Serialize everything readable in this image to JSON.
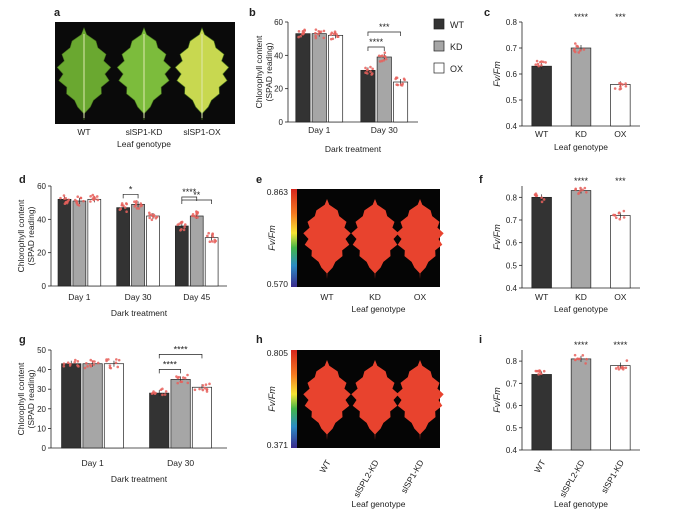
{
  "figure": {
    "panel_letters": [
      "a",
      "b",
      "c",
      "d",
      "e",
      "f",
      "g",
      "h",
      "i"
    ]
  },
  "photos": [
    {
      "id": "a",
      "type": "photo",
      "leaves": [
        "WT",
        "slSP1-KD",
        "slSP1-OX"
      ],
      "xlabel": "Leaf genotype",
      "colors": [
        "#6aa830",
        "#7cbc3c",
        "#c8d850"
      ]
    },
    {
      "id": "e",
      "type": "fluorescence-image",
      "leaves": [
        "WT",
        "KD",
        "OX"
      ],
      "xlabel": "Leaf genotype",
      "colorbar_label": "Fv/Fm",
      "colorbar_max": "0.863",
      "colorbar_min": "0.570"
    },
    {
      "id": "h",
      "type": "fluorescence-image",
      "leaves": [
        "WT",
        "slSPL2-KD",
        "slSP1-KD"
      ],
      "xlabel": "Leaf genotype",
      "colorbar_label": "Fv/Fm",
      "colorbar_max": "0.805",
      "colorbar_min": "0.371"
    }
  ],
  "chart_data": [
    {
      "id": "b",
      "type": "bar",
      "ylabel": [
        "Chlorophyll content",
        "(SPAD reading)"
      ],
      "xlabel": "Dark treatment",
      "categories": [
        "Day 1",
        "Day 30"
      ],
      "yticks": [
        0,
        20,
        40,
        60
      ],
      "ylim": [
        0,
        60
      ],
      "series": [
        {
          "name": "WT",
          "values": [
            53,
            31
          ]
        },
        {
          "name": "KD",
          "values": [
            53,
            39
          ]
        },
        {
          "name": "OX",
          "values": [
            52,
            24
          ]
        }
      ],
      "significance": [
        {
          "group": 1,
          "from": 0,
          "to": 1,
          "label": "****"
        },
        {
          "group": 1,
          "from": 0,
          "to": 2,
          "label": "***"
        }
      ],
      "legend": [
        "WT",
        "KD",
        "OX"
      ]
    },
    {
      "id": "c",
      "type": "bar",
      "ylabel": [
        "Fv/Fm"
      ],
      "xlabel": "Leaf genotype",
      "categories": [
        "WT",
        "KD",
        "OX"
      ],
      "yticks": [
        0.4,
        0.5,
        0.6,
        0.7,
        0.8
      ],
      "ylim": [
        0.4,
        0.8
      ],
      "values": [
        0.63,
        0.7,
        0.56
      ],
      "annotations": [
        "",
        "****",
        "***"
      ]
    },
    {
      "id": "d",
      "type": "bar",
      "ylabel": [
        "Chlorophyll content",
        "(SPAD reading)"
      ],
      "xlabel": "Dark treatment",
      "categories": [
        "Day 1",
        "Day 30",
        "Day 45"
      ],
      "yticks": [
        0,
        20,
        40,
        60
      ],
      "ylim": [
        0,
        60
      ],
      "series": [
        {
          "name": "WT",
          "values": [
            52,
            47,
            36
          ]
        },
        {
          "name": "KD",
          "values": [
            51,
            49,
            42
          ]
        },
        {
          "name": "OX",
          "values": [
            52,
            42,
            29
          ]
        }
      ],
      "significance": [
        {
          "group": 1,
          "from": 0,
          "to": 1,
          "label": "*"
        },
        {
          "group": 2,
          "from": 0,
          "to": 1,
          "label": "****"
        },
        {
          "group": 2,
          "from": 0,
          "to": 2,
          "label": "**"
        }
      ]
    },
    {
      "id": "f",
      "type": "bar",
      "ylabel": [
        "Fv/Fm"
      ],
      "xlabel": "Leaf genotype",
      "categories": [
        "WT",
        "KD",
        "OX"
      ],
      "yticks": [
        0.4,
        0.5,
        0.6,
        0.7,
        0.8
      ],
      "ylim": [
        0.4,
        0.85
      ],
      "values": [
        0.8,
        0.83,
        0.72
      ],
      "annotations": [
        "",
        "****",
        "***"
      ]
    },
    {
      "id": "g",
      "type": "bar",
      "ylabel": [
        "Chlorophyll content",
        "(SPAD reading)"
      ],
      "xlabel": "Dark treatment",
      "categories": [
        "Day 1",
        "Day 30"
      ],
      "yticks": [
        0,
        10,
        20,
        30,
        40,
        50
      ],
      "ylim": [
        0,
        50
      ],
      "series": [
        {
          "name": "WT",
          "values": [
            43,
            28
          ]
        },
        {
          "name": "slSPL2-KD",
          "values": [
            43,
            35
          ]
        },
        {
          "name": "slSP1-KD",
          "values": [
            43,
            31
          ]
        }
      ],
      "significance": [
        {
          "group": 1,
          "from": 0,
          "to": 1,
          "label": "****"
        },
        {
          "group": 1,
          "from": 0,
          "to": 2,
          "label": "****"
        }
      ]
    },
    {
      "id": "i",
      "type": "bar",
      "ylabel": [
        "Fv/Fm"
      ],
      "xlabel": "Leaf genotype",
      "categories": [
        "WT",
        "slSPL2-KD",
        "slSP1-KD"
      ],
      "yticks": [
        0.4,
        0.5,
        0.6,
        0.7,
        0.8
      ],
      "ylim": [
        0.4,
        0.85
      ],
      "values": [
        0.74,
        0.81,
        0.78
      ],
      "annotations": [
        "",
        "****",
        "****"
      ]
    }
  ],
  "colors": {
    "wt": "#333333",
    "kd": "#a6a6a6",
    "ox": "#ffffff",
    "points": "#e8605c",
    "fluor_leaf": "#e8432e"
  }
}
